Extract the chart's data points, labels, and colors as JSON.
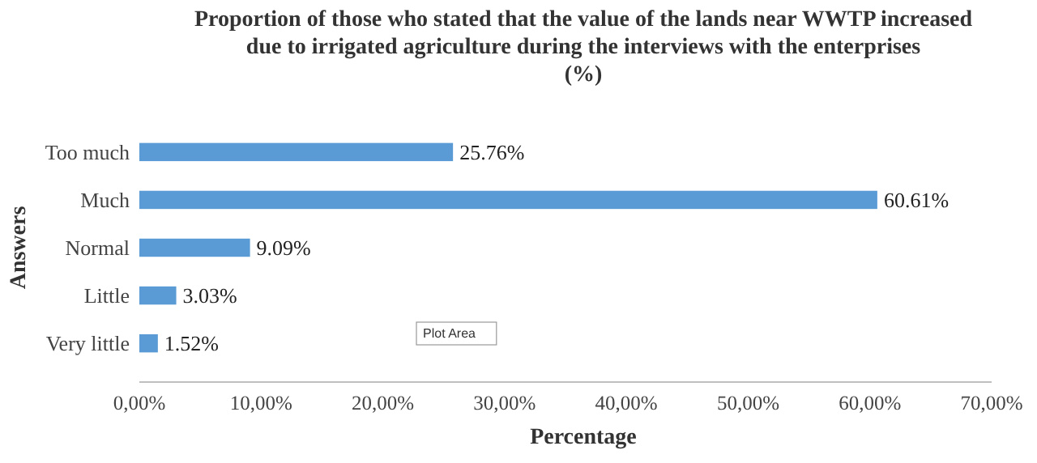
{
  "chart_data": {
    "type": "bar",
    "orientation": "horizontal",
    "title": "Proportion of those who stated that the value of the lands near WWTP increased\ndue to irrigated agriculture during the interviews with the enterprises\n(%)",
    "xlabel": "Percentage",
    "ylabel": "Answers",
    "categories": [
      "Too much",
      "Much",
      "Normal",
      "Little",
      "Very little"
    ],
    "values": [
      25.76,
      60.61,
      9.09,
      3.03,
      1.52
    ],
    "value_labels": [
      "25.76%",
      "60.61%",
      "9.09%",
      "3.03%",
      "1.52%"
    ],
    "color": "#5b9bd5",
    "xlim": [
      0,
      70
    ],
    "xticks": [
      {
        "value": 0,
        "label": "0,00%"
      },
      {
        "value": 10,
        "label": "10,00%"
      },
      {
        "value": 20,
        "label": "20,00%"
      },
      {
        "value": 30,
        "label": "30,00%"
      },
      {
        "value": 40,
        "label": "40,00%"
      },
      {
        "value": 50,
        "label": "50,00%"
      },
      {
        "value": 60,
        "label": "60,00%"
      },
      {
        "value": 70,
        "label": "70,00%"
      }
    ],
    "grid": false,
    "annotations": [
      "Plot Area"
    ]
  }
}
